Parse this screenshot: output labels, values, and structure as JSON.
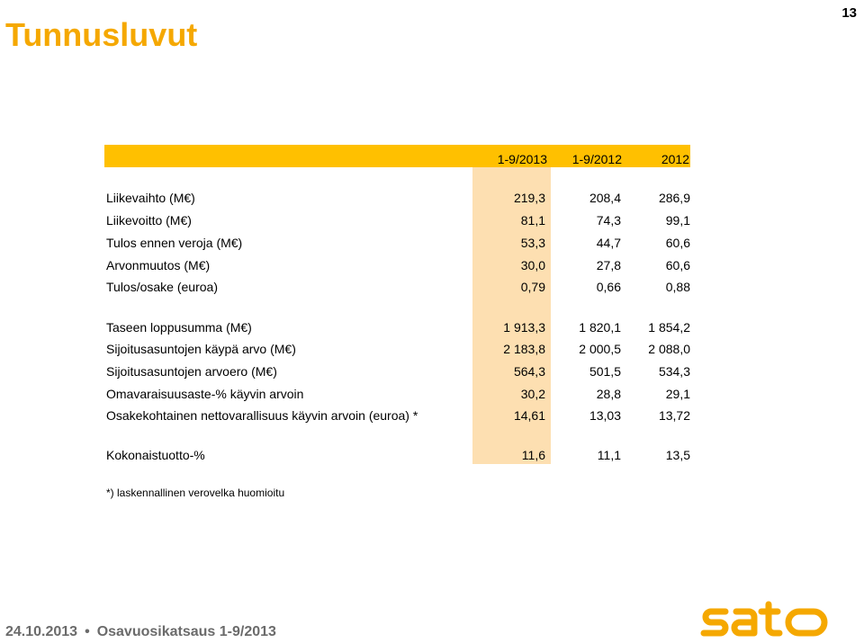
{
  "page_number": "13",
  "title": "Tunnusluvut",
  "columns": [
    "1-9/2013",
    "1-9/2012",
    "2012"
  ],
  "groups": [
    {
      "rows": [
        {
          "label": "Liikevaihto (M€)",
          "values": [
            "219,3",
            "208,4",
            "286,9"
          ]
        },
        {
          "label": "Liikevoitto (M€)",
          "values": [
            "81,1",
            "74,3",
            "99,1"
          ]
        },
        {
          "label": "Tulos ennen veroja (M€)",
          "values": [
            "53,3",
            "44,7",
            "60,6"
          ]
        },
        {
          "label": "Arvonmuutos (M€)",
          "values": [
            "30,0",
            "27,8",
            "60,6"
          ]
        },
        {
          "label": "Tulos/osake (euroa)",
          "values": [
            "0,79",
            "0,66",
            "0,88"
          ]
        }
      ]
    },
    {
      "rows": [
        {
          "label": "Taseen loppusumma (M€)",
          "values": [
            "1 913,3",
            "1 820,1",
            "1 854,2"
          ]
        },
        {
          "label": "Sijoitusasuntojen käypä arvo (M€)",
          "values": [
            "2 183,8",
            "2 000,5",
            "2 088,0"
          ]
        },
        {
          "label": "Sijoitusasuntojen arvoero (M€)",
          "values": [
            "564,3",
            "501,5",
            "534,3"
          ]
        },
        {
          "label": "Omavaraisuusaste-% käyvin arvoin",
          "values": [
            "30,2",
            "28,8",
            "29,1"
          ]
        },
        {
          "label": "Osakekohtainen nettovarallisuus käyvin arvoin (euroa) *",
          "values": [
            "14,61",
            "13,03",
            "13,72"
          ]
        }
      ]
    },
    {
      "rows": [
        {
          "label": "Kokonaistuotto-%",
          "values": [
            "11,6",
            "11,1",
            "13,5"
          ]
        }
      ]
    }
  ],
  "footnote": "*) laskennallinen verovelka huomioitu",
  "footer": {
    "date": "24.10.2013",
    "bullet": "•",
    "text": "Osavuosikatsaus 1-9/2013"
  },
  "logo": {
    "text": "sato",
    "color": "#F5A800",
    "icon": "sato-logo"
  }
}
